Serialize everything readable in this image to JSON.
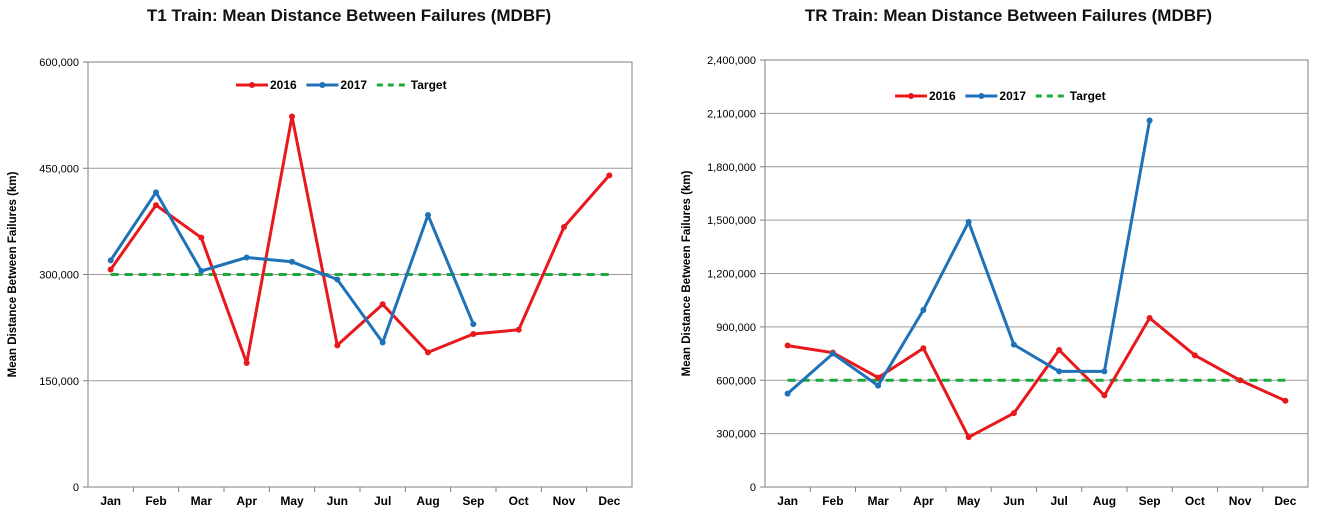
{
  "charts": [
    {
      "title": "T1 Train: Mean Distance Between Failures (MDBF)",
      "chart_data": {
        "type": "line",
        "title": "T1 Train: Mean Distance Between Failures (MDBF)",
        "xlabel": "",
        "ylabel": "Mean Distance Between Failures (km)",
        "categories": [
          "Jan",
          "Feb",
          "Mar",
          "Apr",
          "May",
          "Jun",
          "Jul",
          "Aug",
          "Sep",
          "Oct",
          "Nov",
          "Dec"
        ],
        "ylim": [
          0,
          600000
        ],
        "yticks": [
          0,
          150000,
          300000,
          450000,
          600000
        ],
        "ytick_labels": [
          "0",
          "150,000",
          "300,000",
          "450,000",
          "600,000"
        ],
        "grid": "horizontal",
        "legend": "top-center",
        "series": [
          {
            "name": "2016",
            "color": "#e8181c",
            "style": "solid",
            "markers": true,
            "values": [
              307000,
              398000,
              352000,
              175000,
              523000,
              200000,
              258000,
              190000,
              216000,
              222000,
              367000,
              440000
            ]
          },
          {
            "name": "2017",
            "color": "#1f72b8",
            "style": "solid",
            "markers": true,
            "values": [
              320000,
              416000,
              305000,
              324000,
              318000,
              293000,
              204000,
              384000,
              230000,
              null,
              null,
              null
            ]
          },
          {
            "name": "Target",
            "color": "#1aaa3a",
            "style": "dashed",
            "markers": false,
            "values": [
              300000,
              300000,
              300000,
              300000,
              300000,
              300000,
              300000,
              300000,
              300000,
              300000,
              300000,
              300000
            ]
          }
        ]
      }
    },
    {
      "title": "TR Train: Mean Distance Between Failures (MDBF)",
      "chart_data": {
        "type": "line",
        "title": "TR Train: Mean Distance Between Failures (MDBF)",
        "xlabel": "",
        "ylabel": "Mean Distance Between Failures (km)",
        "categories": [
          "Jan",
          "Feb",
          "Mar",
          "Apr",
          "May",
          "Jun",
          "Jul",
          "Aug",
          "Sep",
          "Oct",
          "Nov",
          "Dec"
        ],
        "ylim": [
          0,
          2400000
        ],
        "yticks": [
          0,
          300000,
          600000,
          900000,
          1200000,
          1500000,
          1800000,
          2100000,
          2400000
        ],
        "ytick_labels": [
          "0",
          "300,000",
          "600,000",
          "900,000",
          "1,200,000",
          "1,500,000",
          "1,800,000",
          "2,100,000",
          "2,400,000"
        ],
        "grid": "horizontal",
        "legend": "top-center",
        "series": [
          {
            "name": "2016",
            "color": "#e8181c",
            "style": "solid",
            "markers": true,
            "values": [
              795000,
              755000,
              615000,
              780000,
              280000,
              415000,
              770000,
              515000,
              950000,
              740000,
              600000,
              485000
            ]
          },
          {
            "name": "2017",
            "color": "#1f72b8",
            "style": "solid",
            "markers": true,
            "values": [
              525000,
              750000,
              570000,
              995000,
              1490000,
              800000,
              650000,
              650000,
              2060000,
              null,
              null,
              null
            ]
          },
          {
            "name": "Target",
            "color": "#1aaa3a",
            "style": "dashed",
            "markers": false,
            "values": [
              600000,
              600000,
              600000,
              600000,
              600000,
              600000,
              600000,
              600000,
              600000,
              600000,
              600000,
              600000
            ]
          }
        ]
      }
    }
  ]
}
